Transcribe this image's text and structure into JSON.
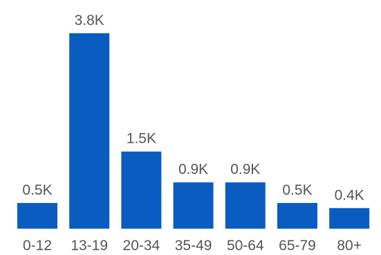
{
  "chart_data": {
    "type": "bar",
    "categories": [
      "0-12",
      "13-19",
      "20-34",
      "35-49",
      "50-64",
      "65-79",
      "80+"
    ],
    "values": [
      0.5,
      3.8,
      1.5,
      0.9,
      0.9,
      0.5,
      0.4
    ],
    "value_labels": [
      "0.5K",
      "3.8K",
      "1.5K",
      "0.9K",
      "0.9K",
      "0.5K",
      "0.4K"
    ],
    "unit": "K",
    "title": "",
    "xlabel": "",
    "ylabel": "",
    "ylim": [
      0,
      3.8
    ],
    "grid": false,
    "legend": "none",
    "colors": {
      "bar": "#0b5cc1",
      "text": "#555555"
    }
  }
}
